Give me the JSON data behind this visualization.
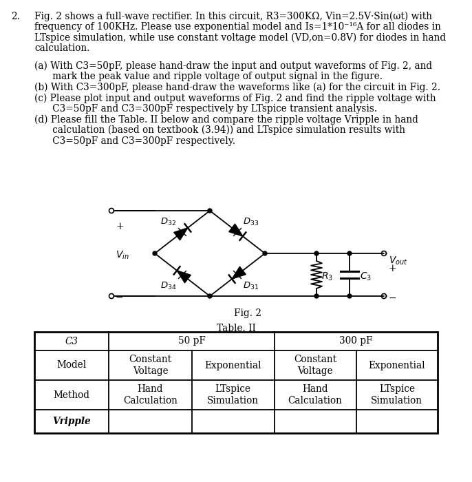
{
  "bg_color": "#ffffff",
  "text_color": "#000000",
  "fig_w": 6.86,
  "fig_h": 7.0,
  "dpi": 100,
  "fs_main": 9.8,
  "fs_table": 9.8,
  "fs_circuit": 9.5,
  "paragraph_lines": [
    "Fig. 2 shows a full-wave rectifier. In this circuit, R3=300KΩ, Vin=2.5V·Sin(ωt) with",
    "frequency of 100KHz. Please use exponential model and Is=1*10⁻¹⁶A for all diodes in",
    "LTspice simulation, while use constant voltage model (VD,on=0.8V) for diodes in hand",
    "calculation."
  ],
  "sub_lines": [
    "(a) With C3=50pF, please hand-draw the input and output waveforms of Fig. 2, and",
    "      mark the peak value and ripple voltage of output signal in the figure.",
    "(b) With C3=300pF, please hand-draw the waveforms like (a) for the circuit in Fig. 2.",
    "(c) Please plot input and output waveforms of Fig. 2 and find the ripple voltage with",
    "      C3=50pF and C3=300pF respectively by LTspice transient analysis.",
    "(d) Please fill the Table. II below and compare the ripple voltage Vripple in hand",
    "      calculation (based on textbook (3.94)) and LTspice simulation results with",
    "      C3=50pF and C3=300pF respectively."
  ],
  "fig_label": "Fig. 2",
  "table_label": "Table. II",
  "num_label": "2.",
  "table_rows": {
    "header_left": "C3",
    "header_mid": "50 pF",
    "header_right": "300 pF",
    "model_label": "Model",
    "model_c1": "Constant\nVoltage",
    "model_c2": "Exponential",
    "model_c3": "Constant\nVoltage",
    "model_c4": "Exponential",
    "method_label": "Method",
    "method_c1": "Hand\nCalculation",
    "method_c2": "LTspice\nSimulation",
    "method_c3": "Hand\nCalculation",
    "method_c4": "LTspice\nSimulation",
    "vripple_label": "Vripple"
  }
}
